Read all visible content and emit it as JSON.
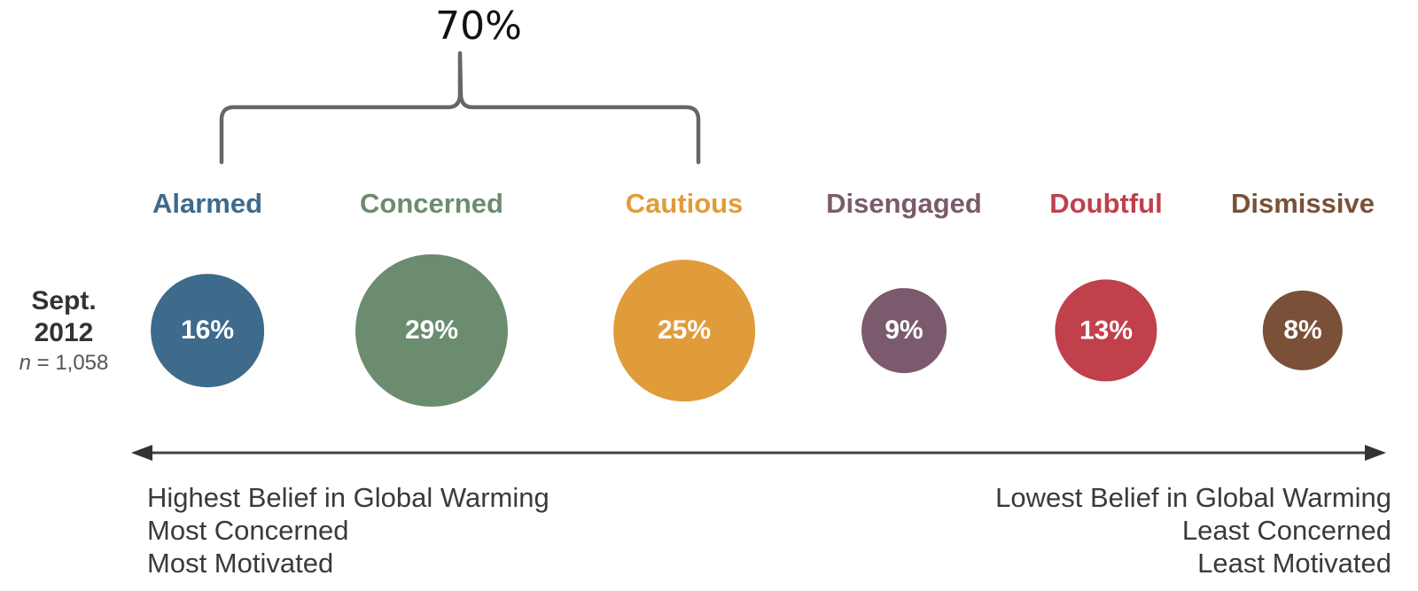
{
  "chart_data": {
    "type": "bubble",
    "callout": {
      "label": "70%",
      "spans": [
        "Alarmed",
        "Concerned",
        "Cautious"
      ]
    },
    "row": {
      "date": "Sept.\n2012",
      "n_symbol": "n",
      "n_text": " = 1,058"
    },
    "segments": [
      {
        "name": "Alarmed",
        "value": 16,
        "label": "16%",
        "color": "#3e6a8c"
      },
      {
        "name": "Concerned",
        "value": 29,
        "label": "29%",
        "color": "#6b8c6e"
      },
      {
        "name": "Cautious",
        "value": 25,
        "label": "25%",
        "color": "#e09c3a"
      },
      {
        "name": "Disengaged",
        "value": 9,
        "label": "9%",
        "color": "#7a5a6c"
      },
      {
        "name": "Doubtful",
        "value": 13,
        "label": "13%",
        "color": "#c0404c"
      },
      {
        "name": "Dismissive",
        "value": 8,
        "label": "8%",
        "color": "#7a5038"
      }
    ],
    "axis": {
      "left": [
        "Highest Belief in Global Warming",
        "Most Concerned",
        "Most Motivated"
      ],
      "right": [
        "Lowest Belief in Global Warming",
        "Least Concerned",
        "Least Motivated"
      ]
    }
  }
}
